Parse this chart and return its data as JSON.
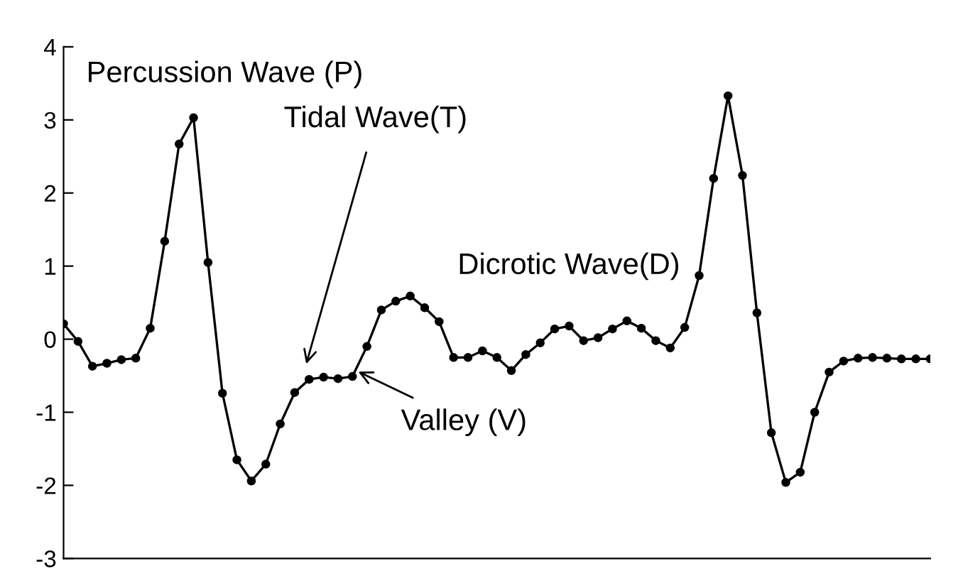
{
  "chart_data": {
    "type": "line",
    "marker": "circle",
    "color": "#000000",
    "grid": false,
    "legend": false,
    "tick_labels": "y",
    "categories": [
      null,
      null,
      null,
      null,
      null,
      null,
      null,
      null,
      null,
      null,
      null,
      null,
      null,
      null,
      null,
      null,
      null,
      null,
      null,
      null,
      null,
      null,
      null,
      null,
      null,
      null,
      null,
      null,
      null,
      null,
      null,
      null,
      null,
      null,
      null,
      null,
      null,
      null,
      null,
      null,
      null,
      null,
      null,
      null,
      null,
      null,
      null,
      null,
      null,
      null,
      null,
      null,
      null,
      null,
      null,
      null,
      null,
      null,
      null,
      null,
      null
    ],
    "ylim": [
      -3,
      4
    ],
    "yticks": [
      -3,
      -2,
      -1,
      0,
      1,
      2,
      3,
      4
    ],
    "values": [
      0.21,
      -0.03,
      -0.37,
      -0.33,
      -0.28,
      -0.26,
      0.15,
      1.34,
      2.67,
      3.03,
      1.05,
      -0.74,
      -1.65,
      -1.94,
      -1.71,
      -1.16,
      -0.73,
      -0.55,
      -0.52,
      -0.54,
      -0.51,
      -0.1,
      0.4,
      0.52,
      0.59,
      0.43,
      0.24,
      -0.25,
      -0.25,
      -0.16,
      -0.25,
      -0.43,
      -0.21,
      -0.05,
      0.14,
      0.18,
      -0.02,
      0.02,
      0.14,
      0.25,
      0.15,
      -0.02,
      -0.12,
      0.16,
      0.87,
      2.2,
      3.33,
      2.24,
      0.36,
      -1.28,
      -1.96,
      -1.82,
      -1.0,
      -0.45,
      -0.3,
      -0.26,
      -0.25,
      -0.26,
      -0.27,
      -0.27,
      -0.27
    ],
    "annotations": [
      "Percussion Wave (P)",
      "Tidal Wave(T)",
      "Dicrotic Wave(D)",
      "Valley (V)"
    ]
  }
}
